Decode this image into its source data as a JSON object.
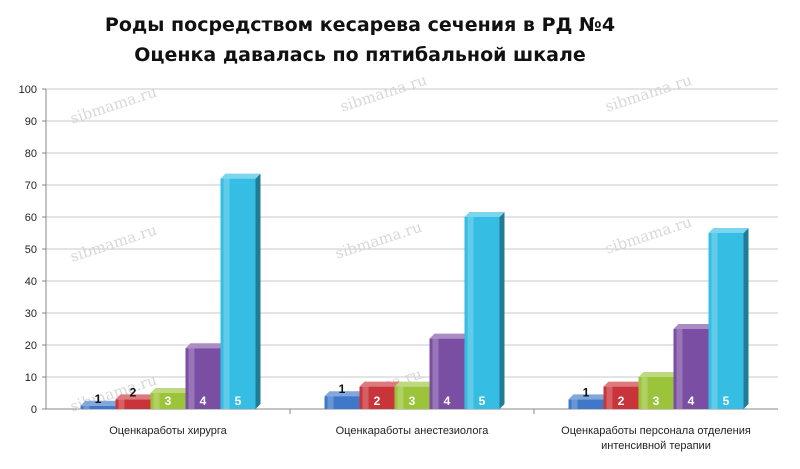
{
  "chart_data": {
    "type": "bar",
    "title": "Роды посредством кесарева сечения в РД №4",
    "subtitle": "Оценка давалась по пятибальной шкале",
    "categories": [
      "Оценкаработы хирурга",
      "Оценкаработы анестезиолога",
      "Оценкаработы персонала отделения интенсивной терапии"
    ],
    "category_lines": [
      [
        "Оценкаработы хирурга"
      ],
      [
        "Оценкаработы анестезиолога"
      ],
      [
        "Оценкаработы персонала отделения",
        "интенсивной терапии"
      ]
    ],
    "series": [
      {
        "name": "1",
        "color": "#3f78c8",
        "values": [
          1,
          4,
          3
        ]
      },
      {
        "name": "2",
        "color": "#c8343a",
        "values": [
          3,
          7,
          7
        ]
      },
      {
        "name": "3",
        "color": "#9bc43a",
        "values": [
          5,
          7,
          10
        ]
      },
      {
        "name": "4",
        "color": "#7a4fa3",
        "values": [
          19,
          22,
          25
        ]
      },
      {
        "name": "5",
        "color": "#35bde4",
        "values": [
          72,
          60,
          55
        ]
      }
    ],
    "ylim": [
      0,
      100
    ],
    "yticks": [
      0,
      10,
      20,
      30,
      40,
      50,
      60,
      70,
      80,
      90,
      100
    ],
    "grid": true,
    "watermark": "sibmama.ru"
  }
}
